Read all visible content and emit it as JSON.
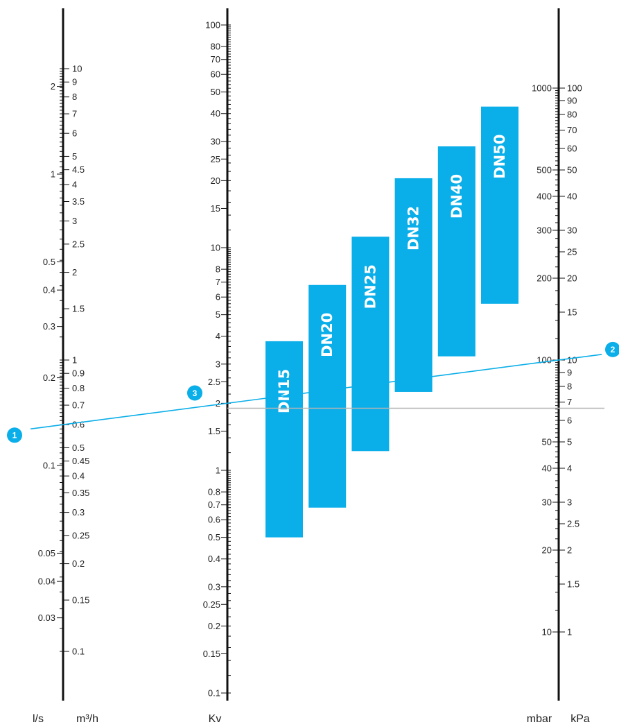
{
  "chart_data": {
    "type": "nomogram",
    "title": "",
    "colors": {
      "accent": "#0aaee8",
      "axis": "#111111",
      "reference_line": "#b5b5b5"
    },
    "axes": [
      {
        "id": "flow_ls",
        "unit": "l/s",
        "scale": "log",
        "side": "left",
        "ticks": [
          {
            "value": 2,
            "label": "2"
          },
          {
            "value": 1,
            "label": "1"
          },
          {
            "value": 0.5,
            "label": "0.5"
          },
          {
            "value": 0.4,
            "label": "0.4"
          },
          {
            "value": 0.3,
            "label": "0.3"
          },
          {
            "value": 0.2,
            "label": "0.2"
          },
          {
            "value": 0.1,
            "label": "0.1"
          },
          {
            "value": 0.05,
            "label": "0.05"
          },
          {
            "value": 0.04,
            "label": "0.04"
          },
          {
            "value": 0.03,
            "label": "0.03"
          }
        ]
      },
      {
        "id": "flow_m3h",
        "unit": "m³/h",
        "scale": "log",
        "side": "right",
        "ticks": [
          {
            "value": 10,
            "label": "10"
          },
          {
            "value": 9,
            "label": "9"
          },
          {
            "value": 8,
            "label": "8"
          },
          {
            "value": 7,
            "label": "7"
          },
          {
            "value": 6,
            "label": "6"
          },
          {
            "value": 5,
            "label": "5"
          },
          {
            "value": 4.5,
            "label": "4.5"
          },
          {
            "value": 4,
            "label": "4"
          },
          {
            "value": 3.5,
            "label": "3.5"
          },
          {
            "value": 3,
            "label": "3"
          },
          {
            "value": 2.5,
            "label": "2.5"
          },
          {
            "value": 2,
            "label": "2"
          },
          {
            "value": 1.5,
            "label": "1.5"
          },
          {
            "value": 1,
            "label": "1"
          },
          {
            "value": 0.9,
            "label": "0.9"
          },
          {
            "value": 0.8,
            "label": "0.8"
          },
          {
            "value": 0.7,
            "label": "0.7"
          },
          {
            "value": 0.6,
            "label": "0.6"
          },
          {
            "value": 0.5,
            "label": "0.5"
          },
          {
            "value": 0.45,
            "label": "0.45"
          },
          {
            "value": 0.4,
            "label": "0.4"
          },
          {
            "value": 0.35,
            "label": "0.35"
          },
          {
            "value": 0.3,
            "label": "0.3"
          },
          {
            "value": 0.25,
            "label": "0.25"
          },
          {
            "value": 0.2,
            "label": "0.2"
          },
          {
            "value": 0.15,
            "label": "0.15"
          },
          {
            "value": 0.1,
            "label": "0.1"
          }
        ]
      },
      {
        "id": "kv",
        "unit": "Kv",
        "scale": "log",
        "side": "left",
        "ticks": [
          {
            "value": 100,
            "label": "100"
          },
          {
            "value": 80,
            "label": "80"
          },
          {
            "value": 70,
            "label": "70"
          },
          {
            "value": 60,
            "label": "60"
          },
          {
            "value": 50,
            "label": "50"
          },
          {
            "value": 40,
            "label": "40"
          },
          {
            "value": 30,
            "label": "30"
          },
          {
            "value": 25,
            "label": "25"
          },
          {
            "value": 20,
            "label": "20"
          },
          {
            "value": 15,
            "label": "15"
          },
          {
            "value": 10,
            "label": "10"
          },
          {
            "value": 8,
            "label": "8"
          },
          {
            "value": 7,
            "label": "7"
          },
          {
            "value": 6,
            "label": "6"
          },
          {
            "value": 5,
            "label": "5"
          },
          {
            "value": 4,
            "label": "4"
          },
          {
            "value": 3,
            "label": "3"
          },
          {
            "value": 2.5,
            "label": "2.5"
          },
          {
            "value": 2,
            "label": "2"
          },
          {
            "value": 1.5,
            "label": "1.5"
          },
          {
            "value": 1,
            "label": "1"
          },
          {
            "value": 0.8,
            "label": "0.8"
          },
          {
            "value": 0.7,
            "label": "0.7"
          },
          {
            "value": 0.6,
            "label": "0.6"
          },
          {
            "value": 0.5,
            "label": "0.5"
          },
          {
            "value": 0.4,
            "label": "0.4"
          },
          {
            "value": 0.3,
            "label": "0.3"
          },
          {
            "value": 0.25,
            "label": "0.25"
          },
          {
            "value": 0.2,
            "label": "0.2"
          },
          {
            "value": 0.15,
            "label": "0.15"
          },
          {
            "value": 0.1,
            "label": "0.1"
          }
        ]
      },
      {
        "id": "dp_mbar",
        "unit": "mbar",
        "scale": "log",
        "side": "left",
        "ticks": [
          {
            "value": 10,
            "label": "10"
          },
          {
            "value": 20,
            "label": "20"
          },
          {
            "value": 30,
            "label": "30"
          },
          {
            "value": 40,
            "label": "40"
          },
          {
            "value": 50,
            "label": "50"
          },
          {
            "value": 100,
            "label": "100"
          },
          {
            "value": 200,
            "label": "200"
          },
          {
            "value": 300,
            "label": "300"
          },
          {
            "value": 400,
            "label": "400"
          },
          {
            "value": 500,
            "label": "500"
          },
          {
            "value": 1000,
            "label": "1000"
          }
        ]
      },
      {
        "id": "dp_kpa",
        "unit": "kPa",
        "scale": "log",
        "side": "right",
        "ticks": [
          {
            "value": 1,
            "label": "1"
          },
          {
            "value": 1.5,
            "label": "1.5"
          },
          {
            "value": 2,
            "label": "2"
          },
          {
            "value": 2.5,
            "label": "2.5"
          },
          {
            "value": 3,
            "label": "3"
          },
          {
            "value": 4,
            "label": "4"
          },
          {
            "value": 5,
            "label": "5"
          },
          {
            "value": 6,
            "label": "6"
          },
          {
            "value": 7,
            "label": "7"
          },
          {
            "value": 8,
            "label": "8"
          },
          {
            "value": 9,
            "label": "9"
          },
          {
            "value": 10,
            "label": "10"
          },
          {
            "value": 15,
            "label": "15"
          },
          {
            "value": 20,
            "label": "20"
          },
          {
            "value": 25,
            "label": "25"
          },
          {
            "value": 30,
            "label": "30"
          },
          {
            "value": 40,
            "label": "40"
          },
          {
            "value": 50,
            "label": "50"
          },
          {
            "value": 60,
            "label": "60"
          },
          {
            "value": 70,
            "label": "70"
          },
          {
            "value": 80,
            "label": "80"
          },
          {
            "value": 90,
            "label": "90"
          },
          {
            "value": 100,
            "label": "100"
          }
        ]
      }
    ],
    "valve_ranges": [
      {
        "label": "DN15",
        "kv_min": 0.5,
        "kv_max": 3.8
      },
      {
        "label": "DN20",
        "kv_min": 0.68,
        "kv_max": 6.8
      },
      {
        "label": "DN25",
        "kv_min": 1.22,
        "kv_max": 11.2
      },
      {
        "label": "DN32",
        "kv_min": 2.25,
        "kv_max": 20.5
      },
      {
        "label": "DN40",
        "kv_min": 3.25,
        "kv_max": 28.5
      },
      {
        "label": "DN50",
        "kv_min": 5.6,
        "kv_max": 43
      }
    ],
    "example": {
      "markers": [
        {
          "label": "1",
          "axis": "flow_m3h",
          "value": 0.6
        },
        {
          "label": "2",
          "axis": "dp_kpa",
          "value": 10
        },
        {
          "label": "3",
          "axis": "kv",
          "value": 1.9
        }
      ]
    }
  }
}
